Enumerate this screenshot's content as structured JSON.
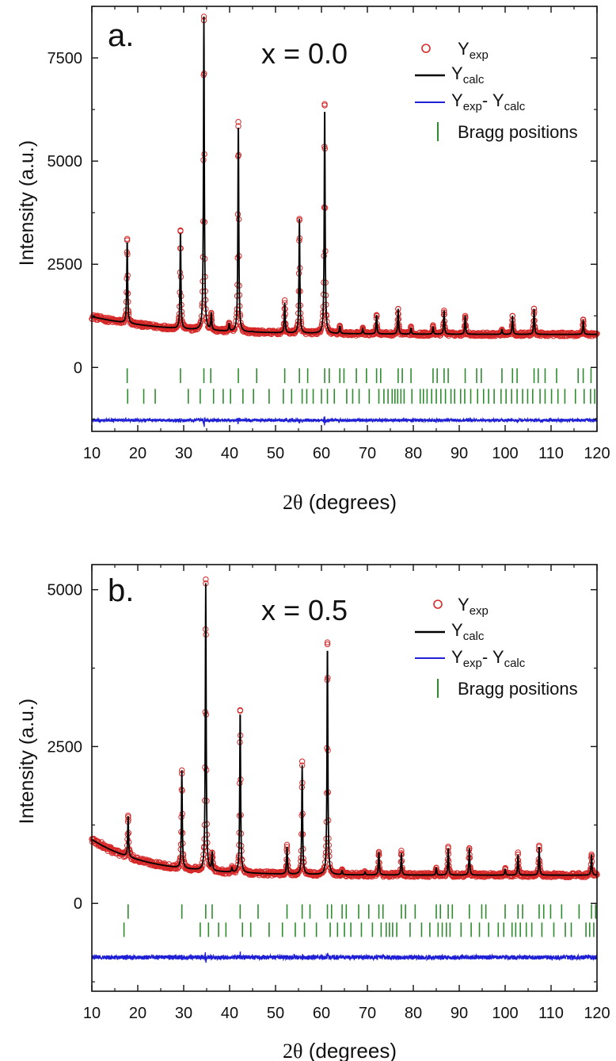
{
  "chart_data": [
    {
      "type": "scatter",
      "panel_label": "a.",
      "composition": "x = 0.0",
      "xlabel": {
        "symbol": "2θ",
        "rest": " (degrees)"
      },
      "ylabel": "Intensity (a.u.)",
      "xlim": [
        10,
        120
      ],
      "ylim": [
        -1550,
        8750
      ],
      "xticks": [
        "10",
        "20",
        "30",
        "40",
        "50",
        "60",
        "70",
        "80",
        "90",
        "100",
        "110",
        "120"
      ],
      "yticks": [
        "0",
        "2500",
        "5000",
        "7500"
      ],
      "background": {
        "start": 1230,
        "end": 800,
        "decay": 17
      },
      "difference_offset": -1280,
      "peaks": [
        {
          "x": 17.7,
          "y": 3080,
          "label": ""
        },
        {
          "x": 29.3,
          "y": 3300,
          "label": ""
        },
        {
          "x": 34.4,
          "y": 8500,
          "label": ""
        },
        {
          "x": 36.0,
          "y": 1300,
          "label": ""
        },
        {
          "x": 39.9,
          "y": 1050,
          "label": ""
        },
        {
          "x": 41.9,
          "y": 5950,
          "label": ""
        },
        {
          "x": 45.0,
          "y": 870,
          "label": ""
        },
        {
          "x": 52.0,
          "y": 1560,
          "label": ""
        },
        {
          "x": 55.2,
          "y": 3600,
          "label": ""
        },
        {
          "x": 60.7,
          "y": 6350,
          "label": ""
        },
        {
          "x": 64.0,
          "y": 1000,
          "label": ""
        },
        {
          "x": 69.0,
          "y": 930,
          "label": ""
        },
        {
          "x": 72.0,
          "y": 1270,
          "label": ""
        },
        {
          "x": 76.7,
          "y": 1420,
          "label": ""
        },
        {
          "x": 79.5,
          "y": 950,
          "label": ""
        },
        {
          "x": 84.3,
          "y": 980,
          "label": ""
        },
        {
          "x": 86.7,
          "y": 1380,
          "label": ""
        },
        {
          "x": 91.3,
          "y": 1250,
          "label": ""
        },
        {
          "x": 99.3,
          "y": 920,
          "label": ""
        },
        {
          "x": 101.6,
          "y": 1250,
          "label": ""
        },
        {
          "x": 106.3,
          "y": 1420,
          "label": ""
        },
        {
          "x": 117.0,
          "y": 1150,
          "label": ""
        }
      ],
      "bragg_row1_y": -200,
      "bragg_row2_y": -700,
      "bragg_half_height": 180,
      "bragg_row1": [
        17.7,
        29.3,
        34.4,
        35.9,
        41.9,
        45.9,
        52.0,
        55.2,
        57.0,
        60.7,
        61.7,
        64.0,
        64.9,
        67.6,
        69.8,
        72.0,
        72.9,
        76.7,
        77.6,
        79.5,
        84.3,
        85.2,
        86.7,
        87.6,
        91.3,
        93.8,
        94.8,
        99.3,
        101.6,
        102.6,
        106.3,
        107.2,
        108.7,
        111.2,
        115.9,
        117.0,
        118.7
      ],
      "bragg_row2": [
        17.8,
        21.3,
        23.8,
        31.0,
        33.6,
        36.5,
        38.6,
        40.2,
        42.9,
        45.2,
        48.6,
        51.7,
        53.5,
        55.8,
        56.8,
        58.2,
        60.0,
        61.3,
        62.8,
        65.5,
        66.8,
        68.2,
        70.4,
        72.5,
        73.6,
        74.5,
        75.4,
        76.0,
        76.6,
        77.3,
        78.0,
        79.7,
        81.5,
        82.2,
        83.0,
        84.0,
        85.0,
        86.0,
        87.0,
        88.2,
        89.0,
        90.3,
        91.2,
        92.5,
        94.0,
        95.3,
        96.4,
        97.6,
        99.1,
        100.2,
        101.4,
        102.6,
        103.8,
        104.9,
        106.0,
        107.6,
        108.7,
        110.1,
        111.5,
        113.0,
        115.3,
        117.2,
        118.6,
        119.5
      ],
      "legend": {
        "exp": {
          "main": "Y",
          "sub": "exp"
        },
        "calc": {
          "main": "Y",
          "sub": "calc"
        },
        "diff": {
          "main1": "Y",
          "sub1": "exp",
          "mid": "- Y",
          "sub2": "calc"
        },
        "bragg": "Bragg positions"
      },
      "series": [
        {
          "name": "Yexp",
          "color": "#d62828",
          "marker": "open-circle"
        },
        {
          "name": "Ycalc",
          "color": "#000000"
        },
        {
          "name": "Yexp- Ycalc",
          "color": "#1f1fd6"
        },
        {
          "name": "Bragg positions",
          "color": "#2e8b2e"
        }
      ]
    },
    {
      "type": "scatter",
      "panel_label": "b.",
      "composition": "x = 0.5",
      "xlabel": {
        "symbol": "2θ",
        "rest": " (degrees)"
      },
      "ylabel": "Intensity (a.u.)",
      "xlim": [
        10,
        120
      ],
      "ylim": [
        -1400,
        5400
      ],
      "xticks": [
        "10",
        "20",
        "30",
        "40",
        "50",
        "60",
        "70",
        "80",
        "90",
        "100",
        "110",
        "120"
      ],
      "yticks": [
        "0",
        "2500",
        "5000"
      ],
      "background": {
        "start": 1020,
        "end": 450,
        "decay": 12
      },
      "difference_offset": -860,
      "peaks": [
        {
          "x": 17.9,
          "y": 1400
        },
        {
          "x": 29.6,
          "y": 2120
        },
        {
          "x": 34.8,
          "y": 5100
        },
        {
          "x": 36.2,
          "y": 800
        },
        {
          "x": 40.5,
          "y": 560
        },
        {
          "x": 42.3,
          "y": 3080
        },
        {
          "x": 52.5,
          "y": 900
        },
        {
          "x": 55.8,
          "y": 2200
        },
        {
          "x": 61.3,
          "y": 4130
        },
        {
          "x": 64.5,
          "y": 520
        },
        {
          "x": 69.5,
          "y": 500
        },
        {
          "x": 72.5,
          "y": 820
        },
        {
          "x": 77.4,
          "y": 800
        },
        {
          "x": 85.0,
          "y": 570
        },
        {
          "x": 87.6,
          "y": 880
        },
        {
          "x": 92.2,
          "y": 880
        },
        {
          "x": 100.0,
          "y": 550
        },
        {
          "x": 102.8,
          "y": 780
        },
        {
          "x": 107.4,
          "y": 900
        },
        {
          "x": 118.8,
          "y": 780
        }
      ],
      "bragg_row1_y": -130,
      "bragg_row2_y": -420,
      "bragg_half_height": 115,
      "bragg_row1": [
        17.9,
        29.6,
        34.8,
        36.2,
        42.3,
        46.2,
        52.5,
        55.8,
        57.5,
        61.3,
        62.2,
        64.5,
        65.4,
        68.1,
        70.3,
        72.5,
        73.4,
        77.4,
        78.3,
        80.4,
        85.0,
        85.9,
        87.6,
        88.5,
        92.2,
        94.9,
        95.8,
        100.0,
        102.8,
        103.8,
        107.4,
        108.4,
        109.9,
        112.3,
        116.1,
        118.8,
        119.7
      ],
      "bragg_row2": [
        17.0,
        33.6,
        35.4,
        37.6,
        39.2,
        42.8,
        44.6,
        48.6,
        51.5,
        54.3,
        56.3,
        58.9,
        61.9,
        63.5,
        65.0,
        66.4,
        68.7,
        71.1,
        73.0,
        74.1,
        74.8,
        75.5,
        76.4,
        79.3,
        81.8,
        83.6,
        85.4,
        86.3,
        87.2,
        88.0,
        90.4,
        92.6,
        94.4,
        96.4,
        98.5,
        99.7,
        101.5,
        102.3,
        103.3,
        104.6,
        105.8,
        108.0,
        110.6,
        113.1,
        114.4,
        117.6,
        118.4,
        119.3
      ]
    }
  ]
}
